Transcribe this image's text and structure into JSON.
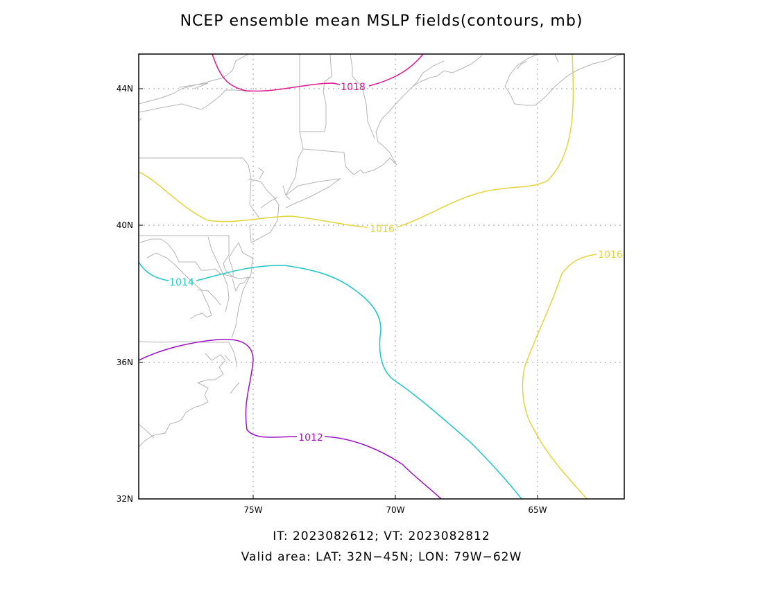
{
  "title": "NCEP ensemble mean MSLP fields(contours, mb)",
  "footer": {
    "line1": "IT: 2023082612; VT: 2023082812",
    "line2": "Valid area: LAT: 32N−45N; LON: 79W−62W"
  },
  "axes": {
    "lat_ticks": [
      {
        "label": "44N",
        "value": 44
      },
      {
        "label": "40N",
        "value": 40
      },
      {
        "label": "36N",
        "value": 36
      },
      {
        "label": "32N",
        "value": 32
      }
    ],
    "lon_ticks": [
      {
        "label": "75W",
        "value": -75
      },
      {
        "label": "70W",
        "value": -70
      },
      {
        "label": "65W",
        "value": -65
      }
    ],
    "lat_range": [
      32,
      45
    ],
    "lon_range": [
      -79,
      -62
    ],
    "grid": true
  },
  "contours": [
    {
      "label": "1018",
      "value": 1018,
      "color": "#e0168c"
    },
    {
      "label": "1016",
      "value": 1016,
      "color": "#e3d43a"
    },
    {
      "label": "1016",
      "value": 1016,
      "color": "#e3d43a"
    },
    {
      "label": "1014",
      "value": 1014,
      "color": "#1cc6c6"
    },
    {
      "label": "1012",
      "value": 1012,
      "color": "#9a10c4"
    }
  ],
  "colors": {
    "coastline": "#b4b4b4",
    "grid": "#999999",
    "frame": "#000000"
  }
}
